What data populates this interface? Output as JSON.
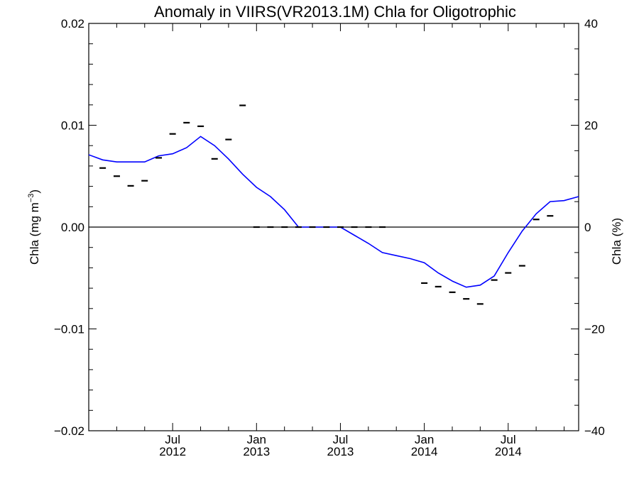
{
  "chart_data": {
    "type": "line",
    "title": "Anomaly in VIIRS(VR2013.1M) Chla for Oligotrophic",
    "ylabel": "Chla (mg m",
    "ylabel_superscript": "−3",
    "ylabel_close": ")",
    "y2label": "Chla (%)",
    "xlim": [
      2012.0,
      2014.92
    ],
    "ylim": [
      -0.02,
      0.02
    ],
    "y2lim": [
      -40,
      40
    ],
    "yticks": [
      {
        "value": 0.02,
        "label": "0.02"
      },
      {
        "value": 0.01,
        "label": "0.01"
      },
      {
        "value": 0.0,
        "label": "0.00"
      },
      {
        "value": -0.01,
        "label": "−0.01"
      },
      {
        "value": -0.02,
        "label": "−0.02"
      }
    ],
    "y2ticks": [
      {
        "value": 40,
        "label": "40"
      },
      {
        "value": 20,
        "label": "20"
      },
      {
        "value": 0,
        "label": "0"
      },
      {
        "value": -20,
        "label": "−20"
      },
      {
        "value": -40,
        "label": "−40"
      }
    ],
    "xticks": [
      {
        "value": 2012.5,
        "month": "Jul",
        "year": "2012"
      },
      {
        "value": 2013.0,
        "month": "Jan",
        "year": "2013"
      },
      {
        "value": 2013.5,
        "month": "Jul",
        "year": "2013"
      },
      {
        "value": 2014.0,
        "month": "Jan",
        "year": "2014"
      },
      {
        "value": 2014.5,
        "month": "Jul",
        "year": "2014"
      }
    ],
    "series": [
      {
        "type": "line",
        "axis": "left",
        "color": "#0000ff",
        "x": [
          2012.0,
          2012.083,
          2012.167,
          2012.25,
          2012.333,
          2012.417,
          2012.5,
          2012.583,
          2012.667,
          2012.75,
          2012.833,
          2012.917,
          2013.0,
          2013.083,
          2013.167,
          2013.25,
          2013.333,
          2013.417,
          2013.5,
          2013.583,
          2013.667,
          2013.75,
          2013.833,
          2013.917,
          2014.0,
          2014.083,
          2014.167,
          2014.25,
          2014.333,
          2014.417,
          2014.5,
          2014.583,
          2014.667,
          2014.75,
          2014.833,
          2014.92
        ],
        "y": [
          0.0071,
          0.0066,
          0.0064,
          0.0064,
          0.0064,
          0.007,
          0.0072,
          0.0078,
          0.0089,
          0.008,
          0.0067,
          0.0052,
          0.0039,
          0.003,
          0.0017,
          0.0,
          0.0,
          0.0,
          0.0,
          -0.0008,
          -0.0016,
          -0.0025,
          -0.0028,
          -0.0031,
          -0.0035,
          -0.0045,
          -0.0053,
          -0.0059,
          -0.0057,
          -0.0048,
          -0.0025,
          -0.0004,
          0.0013,
          0.0025,
          0.0026,
          0.003
        ]
      },
      {
        "type": "markers",
        "axis": "right",
        "marker": "dash",
        "color": "#000000",
        "x": [
          2012.083,
          2012.167,
          2012.25,
          2012.333,
          2012.417,
          2012.5,
          2012.583,
          2012.667,
          2012.75,
          2012.833,
          2012.917,
          2013.0,
          2013.083,
          2013.167,
          2013.25,
          2013.333,
          2013.417,
          2013.5,
          2013.583,
          2013.667,
          2013.75,
          2014.0,
          2014.083,
          2014.167,
          2014.25,
          2014.333,
          2014.417,
          2014.5,
          2014.583,
          2014.667,
          2014.75
        ],
        "y": [
          11.6,
          10.0,
          8.1,
          9.1,
          13.6,
          18.3,
          20.5,
          19.8,
          13.4,
          17.2,
          23.9,
          0,
          0,
          0,
          0,
          0,
          0,
          0,
          0,
          0,
          0,
          -11.0,
          -11.7,
          -12.8,
          -14.1,
          -15.1,
          -10.4,
          -9.0,
          -7.6,
          1.5,
          2.2
        ]
      }
    ]
  }
}
